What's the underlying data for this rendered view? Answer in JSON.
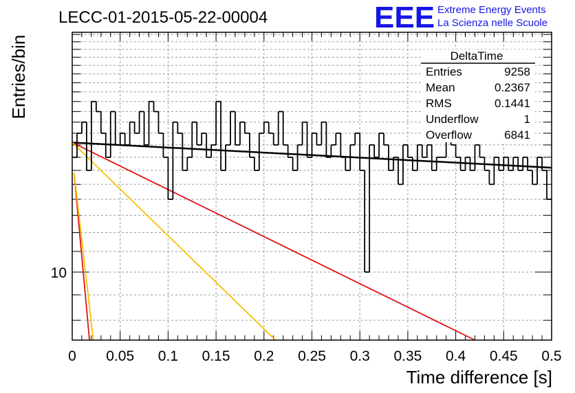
{
  "header": {
    "run_title": "LECC-01-2015-05-22-00004",
    "logo_text": "EEE",
    "logo_line1": "Extreme Energy Events",
    "logo_line2": "La Scienza nelle Scuole",
    "logo_color": "#1515e6"
  },
  "stats_box": {
    "title": "DeltaTime",
    "rows": [
      {
        "label": "Entries",
        "value": "9258"
      },
      {
        "label": "Mean",
        "value": "0.2367"
      },
      {
        "label": "RMS",
        "value": "0.1441"
      },
      {
        "label": "Underflow",
        "value": "1"
      },
      {
        "label": "Overflow",
        "value": "6841"
      }
    ]
  },
  "chart_data": {
    "type": "histogram",
    "xlabel": "Time difference [s]",
    "ylabel": "Entries/bin",
    "xlim": [
      0,
      0.5
    ],
    "ylim": [
      7.3,
      30.3
    ],
    "y_log_scale": true,
    "grid": true,
    "x_ticks": [
      {
        "value": 0,
        "label": "0"
      },
      {
        "value": 0.05,
        "label": "0.05"
      },
      {
        "value": 0.1,
        "label": "0.1"
      },
      {
        "value": 0.15,
        "label": "0.15"
      },
      {
        "value": 0.2,
        "label": "0.2"
      },
      {
        "value": 0.25,
        "label": "0.25"
      },
      {
        "value": 0.3,
        "label": "0.3"
      },
      {
        "value": 0.35,
        "label": "0.35"
      },
      {
        "value": 0.4,
        "label": "0.4"
      },
      {
        "value": 0.45,
        "label": "0.45"
      },
      {
        "value": 0.5,
        "label": "0.5"
      }
    ],
    "y_ticks": [
      {
        "value": 10,
        "label": "10"
      }
    ],
    "bin_width": 0.005,
    "bin_starts": [
      0,
      0.005,
      0.01,
      0.015,
      0.02,
      0.025,
      0.03,
      0.035,
      0.04,
      0.045,
      0.05,
      0.055,
      0.06,
      0.065,
      0.07,
      0.075,
      0.08,
      0.085,
      0.09,
      0.095,
      0.1,
      0.105,
      0.11,
      0.115,
      0.12,
      0.125,
      0.13,
      0.135,
      0.14,
      0.145,
      0.15,
      0.155,
      0.16,
      0.165,
      0.17,
      0.175,
      0.18,
      0.185,
      0.19,
      0.195,
      0.2,
      0.205,
      0.21,
      0.215,
      0.22,
      0.225,
      0.23,
      0.235,
      0.24,
      0.245,
      0.25,
      0.255,
      0.26,
      0.265,
      0.27,
      0.275,
      0.28,
      0.285,
      0.29,
      0.295,
      0.3,
      0.305,
      0.31,
      0.315,
      0.32,
      0.325,
      0.33,
      0.335,
      0.34,
      0.345,
      0.35,
      0.355,
      0.36,
      0.365,
      0.37,
      0.375,
      0.38,
      0.385,
      0.39,
      0.395,
      0.4,
      0.405,
      0.41,
      0.415,
      0.42,
      0.425,
      0.43,
      0.435,
      0.44,
      0.445,
      0.45,
      0.455,
      0.46,
      0.465,
      0.47,
      0.475,
      0.48,
      0.485,
      0.49,
      0.495
    ],
    "counts": [
      17,
      19,
      20,
      16,
      22,
      21,
      19,
      17,
      21,
      18,
      19,
      18,
      20,
      19,
      21,
      18,
      22,
      21,
      19,
      17,
      14,
      20,
      19,
      16,
      17,
      20,
      18,
      19,
      17,
      18,
      22,
      16,
      18,
      21,
      18,
      20,
      19,
      17,
      16,
      19,
      20,
      19,
      18,
      21,
      18,
      17,
      16,
      18,
      20,
      17,
      19,
      18,
      20,
      17,
      18,
      19,
      17,
      16,
      18,
      19,
      16,
      10,
      18,
      17,
      19,
      18,
      16,
      17,
      15,
      18,
      17,
      16,
      18,
      17,
      18,
      16,
      17,
      17,
      19,
      18,
      17,
      16,
      17,
      16,
      18,
      17,
      16,
      15,
      17,
      16,
      17,
      16,
      17,
      16,
      17,
      16,
      15,
      17,
      16,
      14
    ],
    "series": [
      {
        "style": "black",
        "x": [
          0,
          0.5
        ],
        "y": [
          18.2,
          16.2
        ]
      },
      {
        "style": "red",
        "x": [
          0,
          0.42
        ],
        "y": [
          18.2,
          7.3
        ]
      },
      {
        "style": "yellow",
        "x": [
          0,
          0.212
        ],
        "y": [
          18.2,
          7.3
        ]
      },
      {
        "style": "red2",
        "x": [
          0.002,
          0.018
        ],
        "y": [
          15.8,
          7.3
        ]
      },
      {
        "style": "yellow2",
        "x": [
          0.002,
          0.022
        ],
        "y": [
          15.8,
          7.3
        ]
      }
    ],
    "series_colors": {
      "black": "#000000",
      "red": "#e01010",
      "yellow": "#f5c000",
      "red2": "#e01010",
      "yellow2": "#f5c000"
    }
  }
}
